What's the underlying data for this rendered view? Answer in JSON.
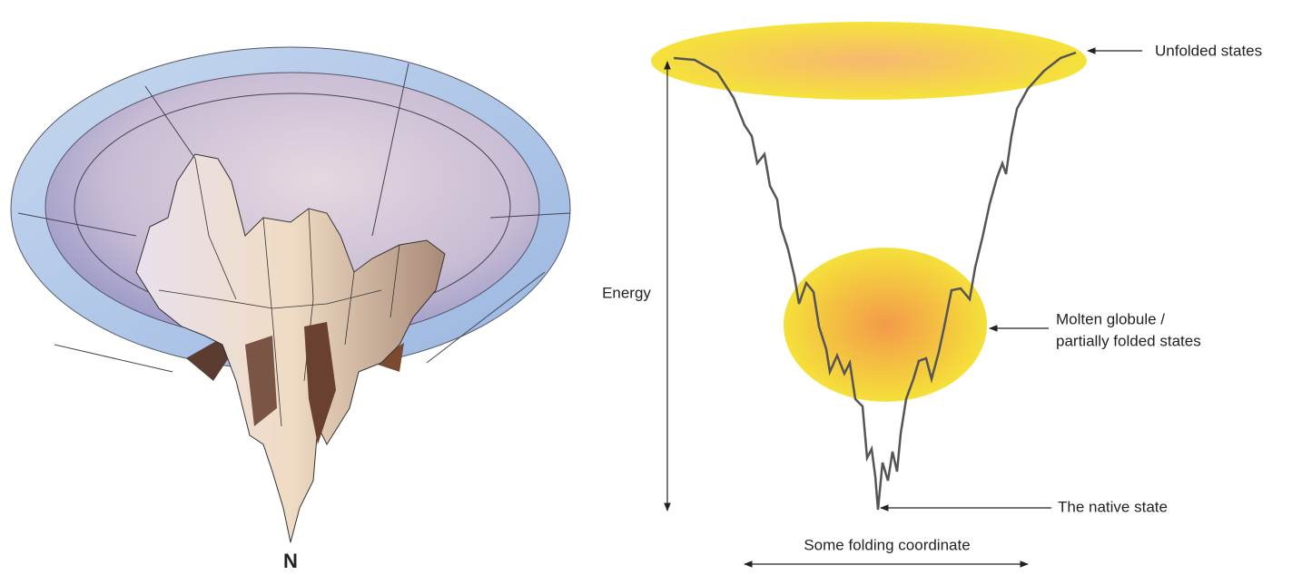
{
  "left_panel": {
    "label": "N"
  },
  "right_panel": {
    "y_axis_label": "Energy",
    "x_axis_label": "Some folding coordinate",
    "annotations": {
      "unfolded": "Unfolded states",
      "molten_globule": [
        "Molten globule /",
        "partially folded states"
      ],
      "native": "The native state"
    }
  }
}
